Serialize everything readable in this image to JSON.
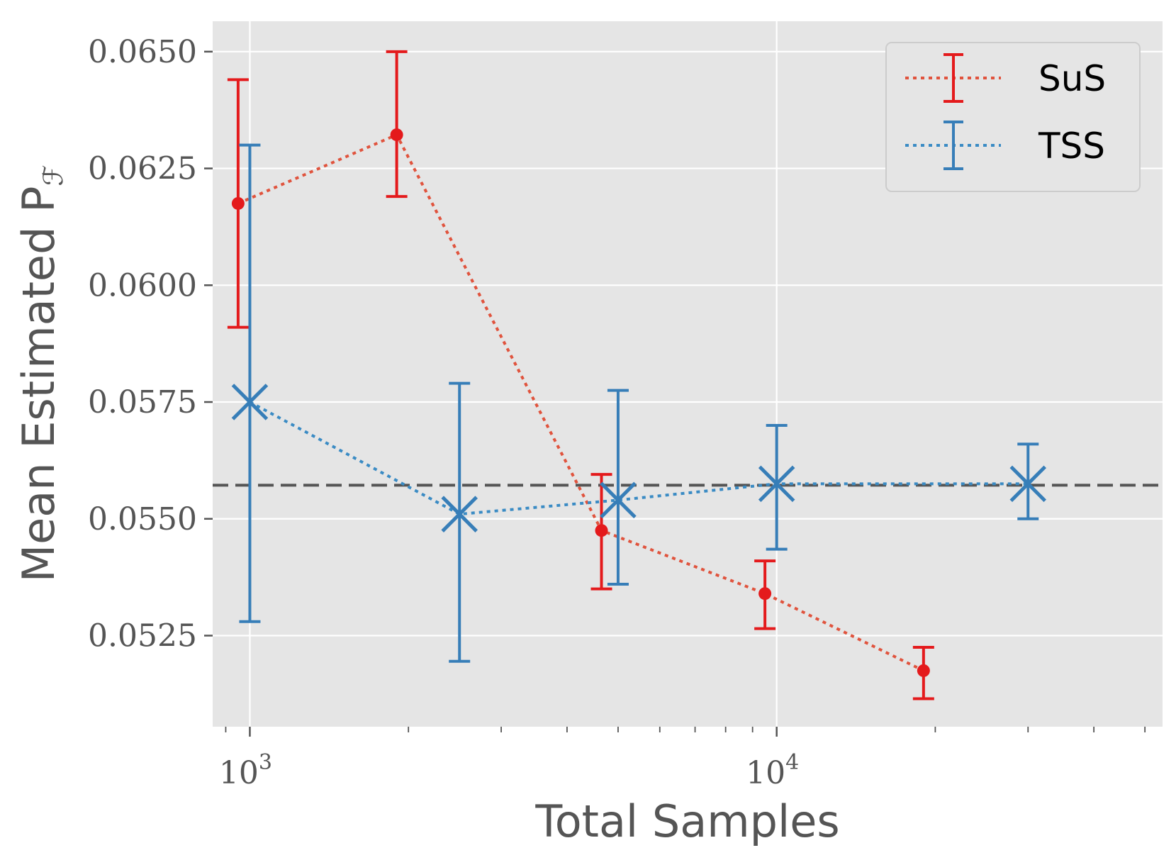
{
  "chart_data": {
    "type": "line",
    "xscale": "log",
    "xlabel": "Total Samples",
    "ylabel": "Mean Estimated P",
    "ylabel_subscript": "ℱ",
    "xlim": [
      850,
      54000
    ],
    "ylim": [
      0.05055,
      0.06565
    ],
    "x_ticks": [
      {
        "label": "10",
        "exp": "3",
        "value": 1000
      },
      {
        "label": "10",
        "exp": "4",
        "value": 10000
      }
    ],
    "y_ticks": [
      {
        "value": 0.0525,
        "label": "0.0525"
      },
      {
        "value": 0.055,
        "label": "0.0550"
      },
      {
        "value": 0.0575,
        "label": "0.0575"
      },
      {
        "value": 0.06,
        "label": "0.0600"
      },
      {
        "value": 0.0625,
        "label": "0.0625"
      },
      {
        "value": 0.065,
        "label": "0.0650"
      }
    ],
    "reference_line": {
      "y": 0.05572,
      "style": "dashed",
      "color": "#555555"
    },
    "series": [
      {
        "name": "SuS",
        "color": "#e41a1c",
        "line_color": "#e0533d",
        "marker": "circle",
        "x": [
          950,
          1900,
          4650,
          9500,
          19000
        ],
        "y": [
          0.06175,
          0.06322,
          0.05475,
          0.0534,
          0.05175
        ],
        "err_low": [
          0.0591,
          0.0619,
          0.0535,
          0.05265,
          0.05115
        ],
        "err_high": [
          0.0644,
          0.065,
          0.05595,
          0.0541,
          0.05225
        ]
      },
      {
        "name": "TSS",
        "color": "#377eb8",
        "line_color": "#3a8bc4",
        "marker": "x",
        "x": [
          1000,
          2500,
          5000,
          10000,
          30000
        ],
        "y": [
          0.0575,
          0.0551,
          0.0554,
          0.05575,
          0.05575
        ],
        "err_low": [
          0.0528,
          0.05195,
          0.0536,
          0.05435,
          0.055
        ],
        "err_high": [
          0.063,
          0.0579,
          0.05775,
          0.057,
          0.0566
        ]
      }
    ],
    "legend_position": "top-right",
    "grid": true
  }
}
